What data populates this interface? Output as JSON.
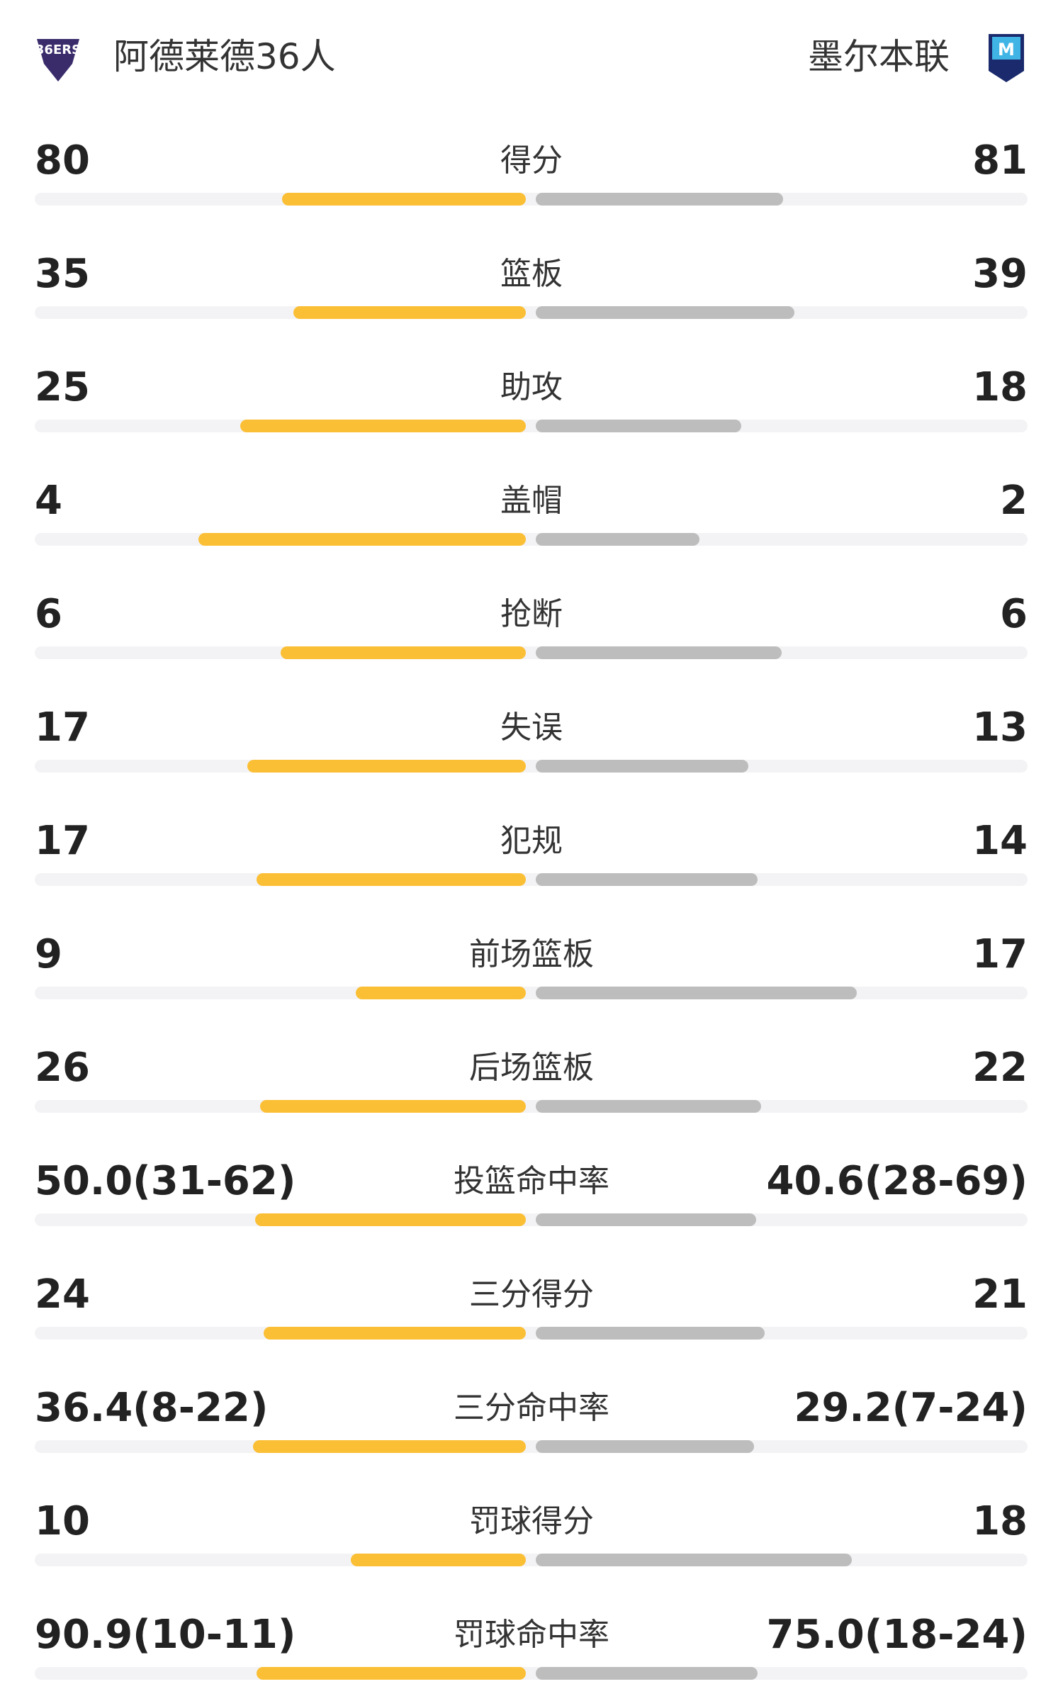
{
  "header": {
    "home_team": "阿德莱德36人",
    "away_team": "墨尔本联"
  },
  "rows": [
    {
      "label": "得分",
      "home": 80,
      "away": 81
    },
    {
      "label": "篮板",
      "home": 35,
      "away": 39
    },
    {
      "label": "助攻",
      "home": 25,
      "away": 18
    },
    {
      "label": "盖帽",
      "home": 4,
      "away": 2
    },
    {
      "label": "抢断",
      "home": 6,
      "away": 6
    },
    {
      "label": "失误",
      "home": 17,
      "away": 13
    },
    {
      "label": "犯规",
      "home": 17,
      "away": 14
    },
    {
      "label": "前场篮板",
      "home": 9,
      "away": 17
    },
    {
      "label": "后场篮板",
      "home": 26,
      "away": 22
    },
    {
      "label": "投篮命中率",
      "home": {
        "value": 50.0,
        "label": "50.0(31-62)"
      },
      "away": {
        "value": 40.6,
        "label": "40.6(28-69)"
      }
    },
    {
      "label": "三分得分",
      "home": 24,
      "away": 21
    },
    {
      "label": "三分命中率",
      "home": {
        "value": 36.4,
        "label": "36.4(8-22)"
      },
      "away": {
        "value": 29.2,
        "label": "29.2(7-24)"
      }
    },
    {
      "label": "罚球得分",
      "home": 10,
      "away": 18
    },
    {
      "label": "罚球命中率",
      "home": {
        "value": 90.9,
        "label": "90.9(10-11)"
      },
      "away": {
        "value": 75.0,
        "label": "75.0(18-24)"
      }
    }
  ]
}
